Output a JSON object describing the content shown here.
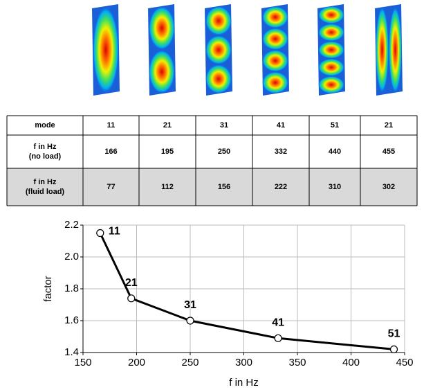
{
  "table": {
    "rows": [
      [
        "mode",
        "11",
        "21",
        "31",
        "41",
        "51",
        "21"
      ],
      [
        "f in Hz\n(no load)",
        "166",
        "195",
        "250",
        "332",
        "440",
        "455"
      ],
      [
        "f in Hz\n(fluid load)",
        "77",
        "112",
        "156",
        "222",
        "310",
        "302"
      ]
    ]
  },
  "chart_data": {
    "type": "line",
    "x": [
      166,
      195,
      250,
      332,
      440
    ],
    "values": [
      2.15,
      1.74,
      1.6,
      1.49,
      1.42
    ],
    "point_labels": [
      "11",
      "21",
      "31",
      "41",
      "51"
    ],
    "color": "#000000",
    "xlabel": "f in Hz",
    "ylabel": "factor",
    "xlim": [
      150,
      450
    ],
    "xticks": [
      150,
      200,
      250,
      300,
      350,
      400,
      450
    ],
    "ylim": [
      1.4,
      2.2
    ],
    "yticks": [
      1.4,
      1.6,
      1.8,
      {
        "value": 2,
        "label": "2.0"
      },
      2.2
    ],
    "grid": true
  }
}
